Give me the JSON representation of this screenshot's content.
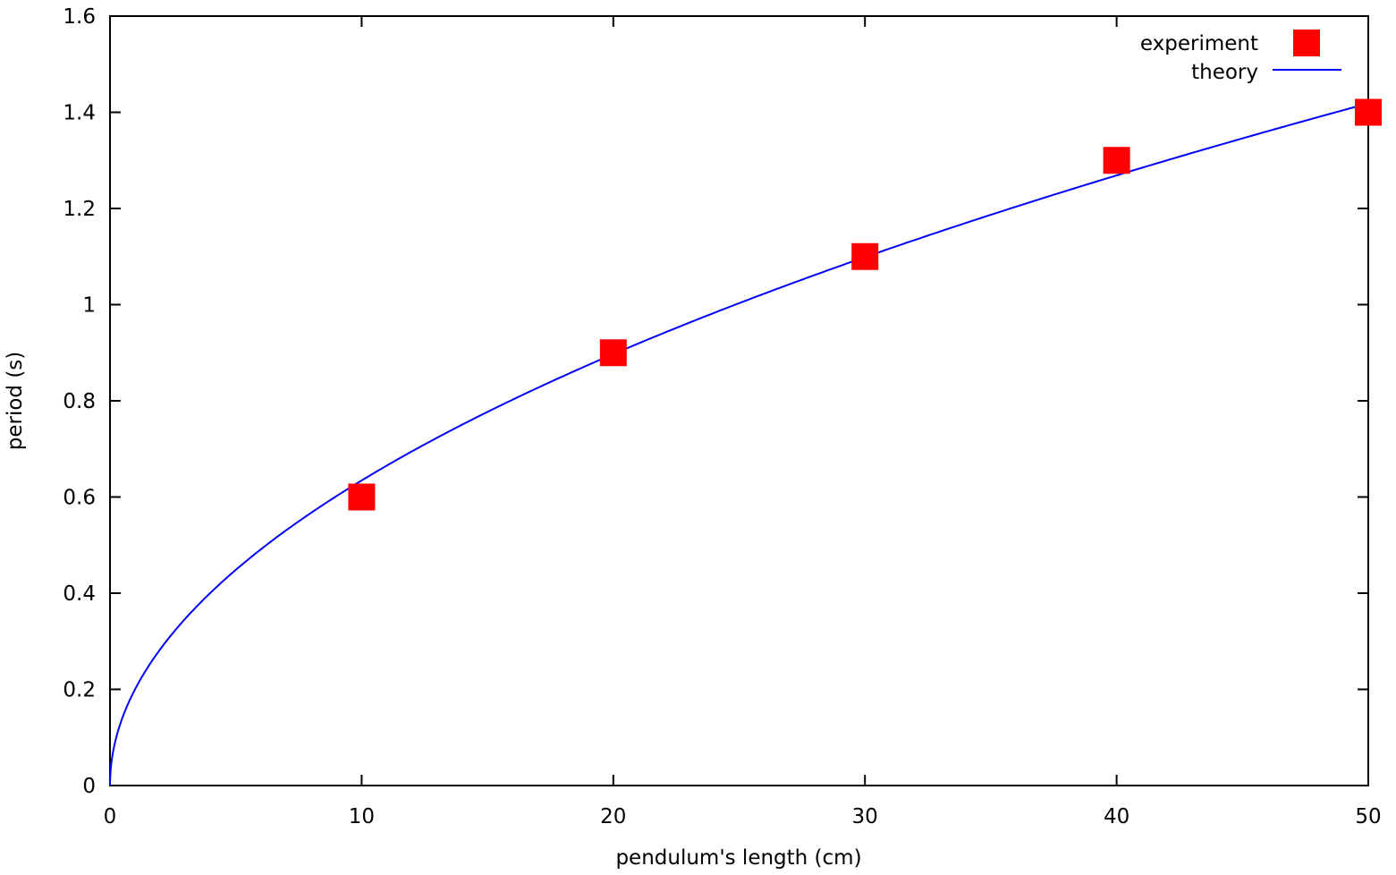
{
  "chart_data": {
    "type": "scatter",
    "xlabel": "pendulum's length (cm)",
    "ylabel": "period (s)",
    "xlim": [
      0,
      50
    ],
    "ylim": [
      0,
      1.6
    ],
    "x_ticks": [
      0,
      10,
      20,
      30,
      40,
      50
    ],
    "y_ticks": [
      0,
      0.2,
      0.4,
      0.6,
      0.8,
      1,
      1.2,
      1.4,
      1.6
    ],
    "x_tick_labels": [
      "0",
      "10",
      "20",
      "30",
      "40",
      "50"
    ],
    "y_tick_labels": [
      "0",
      "0.2",
      "0.4",
      "0.6",
      "0.8",
      "1",
      "1.2",
      "1.4",
      "1.6"
    ],
    "grid": false,
    "legend_position": "top-right",
    "series": [
      {
        "name": "experiment",
        "kind": "points",
        "marker": "filled-square",
        "color": "#ff0000",
        "x": [
          10,
          20,
          30,
          40,
          50
        ],
        "y": [
          0.6,
          0.9,
          1.1,
          1.3,
          1.4
        ]
      },
      {
        "name": "theory",
        "kind": "line",
        "color": "#0000ff",
        "formula": "2*pi*sqrt(x/981)"
      }
    ]
  }
}
